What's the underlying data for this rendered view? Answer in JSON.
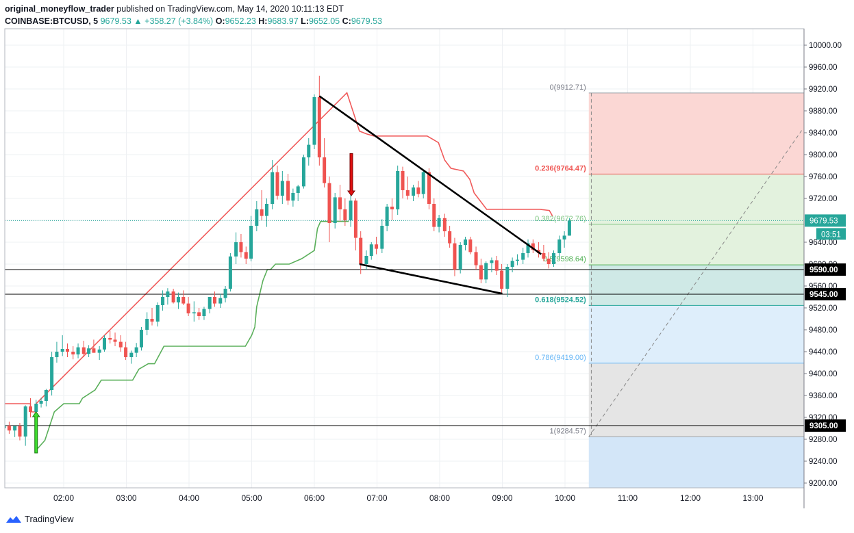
{
  "header": {
    "user": "original_moneyflow_trader",
    "published": "published on TradingView.com, May 14, 2020 10:11:13 EDT",
    "symbol": "COINBASE:BTCUSD, 5",
    "last": "9679.53",
    "change": "+358.27 (+3.84%)",
    "o_label": "O:",
    "o": "9652.23",
    "h_label": "H:",
    "h": "9683.97",
    "l_label": "L:",
    "l": "9652.05",
    "c_label": "C:",
    "c": "9679.53"
  },
  "footer": {
    "brand": "TradingView"
  },
  "colors": {
    "bull": "#26a69a",
    "bear": "#ef5350",
    "upper_line": "#f05a5a",
    "lower_line": "#5aaf5a",
    "fib_red": "#fbd7d4",
    "fib_green": "#e3f2de",
    "fib_teal": "#cfe9e6",
    "fib_lightblue": "#deeefb",
    "fib_gray": "#e5e5e5",
    "fib_blue": "#d3e6f8"
  },
  "chart_data": {
    "type": "candlestick",
    "title": "COINBASE:BTCUSD, 5",
    "xlabel": "",
    "ylabel": "",
    "ylim": [
      9195,
      10030
    ],
    "xlim": [
      1.05,
      13.8
    ],
    "x_ticks": [
      {
        "t": 2,
        "label": "02:00"
      },
      {
        "t": 3,
        "label": "03:00"
      },
      {
        "t": 4,
        "label": "04:00"
      },
      {
        "t": 5,
        "label": "05:00"
      },
      {
        "t": 6,
        "label": "06:00"
      },
      {
        "t": 7,
        "label": "07:00"
      },
      {
        "t": 8,
        "label": "08:00"
      },
      {
        "t": 9,
        "label": "09:00"
      },
      {
        "t": 10,
        "label": "10:00"
      },
      {
        "t": 11,
        "label": "11:00"
      },
      {
        "t": 12,
        "label": "12:00"
      },
      {
        "t": 13,
        "label": "13:00"
      }
    ],
    "y_ticks": [
      {
        "v": 10000,
        "label": "10000.00"
      },
      {
        "v": 9960,
        "label": "9960.00"
      },
      {
        "v": 9920,
        "label": "9920.00"
      },
      {
        "v": 9880,
        "label": "9880.00"
      },
      {
        "v": 9840,
        "label": "9840.00"
      },
      {
        "v": 9800,
        "label": "9800.00"
      },
      {
        "v": 9760,
        "label": "9760.00"
      },
      {
        "v": 9720,
        "label": "9720.00"
      },
      {
        "v": 9640,
        "label": "9640.00"
      },
      {
        "v": 9600,
        "label": "9600.00"
      },
      {
        "v": 9560,
        "label": "9560.00"
      },
      {
        "v": 9520,
        "label": "9520.00"
      },
      {
        "v": 9480,
        "label": "9480.00"
      },
      {
        "v": 9440,
        "label": "9440.00"
      },
      {
        "v": 9400,
        "label": "9400.00"
      },
      {
        "v": 9360,
        "label": "9360.00"
      },
      {
        "v": 9320,
        "label": "9320.00"
      },
      {
        "v": 9280,
        "label": "9280.00"
      },
      {
        "v": 9240,
        "label": "9240.00"
      },
      {
        "v": 9200,
        "label": "9200.00"
      }
    ],
    "candles": [
      {
        "t": 1.05,
        "o": 9300,
        "h": 9312,
        "l": 9282,
        "c": 9305
      },
      {
        "t": 1.13,
        "o": 9305,
        "h": 9312,
        "l": 9290,
        "c": 9296
      },
      {
        "t": 1.22,
        "o": 9296,
        "h": 9305,
        "l": 9284,
        "c": 9304
      },
      {
        "t": 1.3,
        "o": 9304,
        "h": 9310,
        "l": 9278,
        "c": 9285
      },
      {
        "t": 1.39,
        "o": 9285,
        "h": 9342,
        "l": 9268,
        "c": 9340
      },
      {
        "t": 1.47,
        "o": 9340,
        "h": 9355,
        "l": 9320,
        "c": 9330
      },
      {
        "t": 1.56,
        "o": 9330,
        "h": 9352,
        "l": 9320,
        "c": 9345
      },
      {
        "t": 1.64,
        "o": 9345,
        "h": 9356,
        "l": 9338,
        "c": 9350
      },
      {
        "t": 1.72,
        "o": 9350,
        "h": 9372,
        "l": 9340,
        "c": 9370
      },
      {
        "t": 1.81,
        "o": 9370,
        "h": 9440,
        "l": 9360,
        "c": 9430
      },
      {
        "t": 1.89,
        "o": 9430,
        "h": 9458,
        "l": 9420,
        "c": 9440
      },
      {
        "t": 1.98,
        "o": 9440,
        "h": 9470,
        "l": 9432,
        "c": 9445
      },
      {
        "t": 2.06,
        "o": 9445,
        "h": 9455,
        "l": 9430,
        "c": 9440
      },
      {
        "t": 2.15,
        "o": 9440,
        "h": 9450,
        "l": 9426,
        "c": 9435
      },
      {
        "t": 2.23,
        "o": 9435,
        "h": 9455,
        "l": 9428,
        "c": 9448
      },
      {
        "t": 2.32,
        "o": 9448,
        "h": 9460,
        "l": 9430,
        "c": 9436
      },
      {
        "t": 2.4,
        "o": 9436,
        "h": 9452,
        "l": 9430,
        "c": 9446
      },
      {
        "t": 2.48,
        "o": 9446,
        "h": 9462,
        "l": 9438,
        "c": 9438
      },
      {
        "t": 2.57,
        "o": 9438,
        "h": 9450,
        "l": 9425,
        "c": 9444
      },
      {
        "t": 2.65,
        "o": 9444,
        "h": 9470,
        "l": 9440,
        "c": 9465
      },
      {
        "t": 2.74,
        "o": 9465,
        "h": 9478,
        "l": 9455,
        "c": 9462
      },
      {
        "t": 2.82,
        "o": 9462,
        "h": 9475,
        "l": 9450,
        "c": 9458
      },
      {
        "t": 2.91,
        "o": 9458,
        "h": 9470,
        "l": 9440,
        "c": 9448
      },
      {
        "t": 2.99,
        "o": 9448,
        "h": 9458,
        "l": 9425,
        "c": 9430
      },
      {
        "t": 3.08,
        "o": 9430,
        "h": 9442,
        "l": 9418,
        "c": 9438
      },
      {
        "t": 3.16,
        "o": 9438,
        "h": 9456,
        "l": 9430,
        "c": 9448
      },
      {
        "t": 3.24,
        "o": 9448,
        "h": 9485,
        "l": 9442,
        "c": 9480
      },
      {
        "t": 3.33,
        "o": 9480,
        "h": 9512,
        "l": 9470,
        "c": 9500
      },
      {
        "t": 3.41,
        "o": 9500,
        "h": 9520,
        "l": 9488,
        "c": 9495
      },
      {
        "t": 3.5,
        "o": 9495,
        "h": 9530,
        "l": 9486,
        "c": 9525
      },
      {
        "t": 3.58,
        "o": 9525,
        "h": 9552,
        "l": 9515,
        "c": 9540
      },
      {
        "t": 3.66,
        "o": 9540,
        "h": 9556,
        "l": 9526,
        "c": 9550
      },
      {
        "t": 3.75,
        "o": 9550,
        "h": 9555,
        "l": 9528,
        "c": 9530
      },
      {
        "t": 3.83,
        "o": 9530,
        "h": 9548,
        "l": 9518,
        "c": 9540
      },
      {
        "t": 3.91,
        "o": 9540,
        "h": 9552,
        "l": 9525,
        "c": 9528
      },
      {
        "t": 3.99,
        "o": 9528,
        "h": 9540,
        "l": 9505,
        "c": 9510
      },
      {
        "t": 4.08,
        "o": 9510,
        "h": 9532,
        "l": 9495,
        "c": 9512
      },
      {
        "t": 4.16,
        "o": 9512,
        "h": 9520,
        "l": 9498,
        "c": 9505
      },
      {
        "t": 4.24,
        "o": 9505,
        "h": 9522,
        "l": 9498,
        "c": 9518
      },
      {
        "t": 4.33,
        "o": 9518,
        "h": 9540,
        "l": 9510,
        "c": 9540
      },
      {
        "t": 4.41,
        "o": 9540,
        "h": 9550,
        "l": 9522,
        "c": 9528
      },
      {
        "t": 4.5,
        "o": 9528,
        "h": 9546,
        "l": 9520,
        "c": 9538
      },
      {
        "t": 4.58,
        "o": 9538,
        "h": 9560,
        "l": 9530,
        "c": 9555
      },
      {
        "t": 4.66,
        "o": 9555,
        "h": 9620,
        "l": 9550,
        "c": 9614
      },
      {
        "t": 4.75,
        "o": 9614,
        "h": 9658,
        "l": 9600,
        "c": 9640
      },
      {
        "t": 4.83,
        "o": 9640,
        "h": 9655,
        "l": 9612,
        "c": 9622
      },
      {
        "t": 4.91,
        "o": 9622,
        "h": 9632,
        "l": 9600,
        "c": 9610
      },
      {
        "t": 4.99,
        "o": 9610,
        "h": 9688,
        "l": 9605,
        "c": 9670
      },
      {
        "t": 5.08,
        "o": 9670,
        "h": 9715,
        "l": 9660,
        "c": 9700
      },
      {
        "t": 5.16,
        "o": 9700,
        "h": 9735,
        "l": 9680,
        "c": 9688
      },
      {
        "t": 5.24,
        "o": 9688,
        "h": 9720,
        "l": 9668,
        "c": 9710
      },
      {
        "t": 5.33,
        "o": 9710,
        "h": 9790,
        "l": 9700,
        "c": 9768
      },
      {
        "t": 5.41,
        "o": 9768,
        "h": 9780,
        "l": 9718,
        "c": 9725
      },
      {
        "t": 5.49,
        "o": 9725,
        "h": 9770,
        "l": 9710,
        "c": 9752
      },
      {
        "t": 5.58,
        "o": 9752,
        "h": 9765,
        "l": 9708,
        "c": 9716
      },
      {
        "t": 5.66,
        "o": 9716,
        "h": 9738,
        "l": 9705,
        "c": 9730
      },
      {
        "t": 5.74,
        "o": 9730,
        "h": 9745,
        "l": 9715,
        "c": 9742
      },
      {
        "t": 5.83,
        "o": 9742,
        "h": 9800,
        "l": 9738,
        "c": 9795
      },
      {
        "t": 5.91,
        "o": 9795,
        "h": 9830,
        "l": 9780,
        "c": 9818
      },
      {
        "t": 6.0,
        "o": 9818,
        "h": 9910,
        "l": 9810,
        "c": 9905
      },
      {
        "t": 6.08,
        "o": 9905,
        "h": 9944,
        "l": 9780,
        "c": 9795
      },
      {
        "t": 6.16,
        "o": 9795,
        "h": 9830,
        "l": 9740,
        "c": 9748
      },
      {
        "t": 6.24,
        "o": 9748,
        "h": 9760,
        "l": 9640,
        "c": 9675
      },
      {
        "t": 6.33,
        "o": 9675,
        "h": 9730,
        "l": 9665,
        "c": 9722
      },
      {
        "t": 6.41,
        "o": 9722,
        "h": 9745,
        "l": 9678,
        "c": 9700
      },
      {
        "t": 6.49,
        "o": 9700,
        "h": 9720,
        "l": 9670,
        "c": 9680
      },
      {
        "t": 6.58,
        "o": 9680,
        "h": 9728,
        "l": 9668,
        "c": 9716
      },
      {
        "t": 6.66,
        "o": 9716,
        "h": 9720,
        "l": 9625,
        "c": 9648
      },
      {
        "t": 6.74,
        "o": 9648,
        "h": 9660,
        "l": 9582,
        "c": 9600
      },
      {
        "t": 6.83,
        "o": 9600,
        "h": 9625,
        "l": 9590,
        "c": 9615
      },
      {
        "t": 6.91,
        "o": 9615,
        "h": 9640,
        "l": 9608,
        "c": 9636
      },
      {
        "t": 6.99,
        "o": 9636,
        "h": 9650,
        "l": 9618,
        "c": 9628
      },
      {
        "t": 7.08,
        "o": 9628,
        "h": 9682,
        "l": 9620,
        "c": 9670
      },
      {
        "t": 7.16,
        "o": 9670,
        "h": 9710,
        "l": 9660,
        "c": 9705
      },
      {
        "t": 7.24,
        "o": 9705,
        "h": 9720,
        "l": 9680,
        "c": 9700
      },
      {
        "t": 7.33,
        "o": 9700,
        "h": 9780,
        "l": 9690,
        "c": 9770
      },
      {
        "t": 7.41,
        "o": 9770,
        "h": 9778,
        "l": 9720,
        "c": 9735
      },
      {
        "t": 7.49,
        "o": 9735,
        "h": 9760,
        "l": 9718,
        "c": 9725
      },
      {
        "t": 7.58,
        "o": 9725,
        "h": 9745,
        "l": 9715,
        "c": 9740
      },
      {
        "t": 7.66,
        "o": 9740,
        "h": 9752,
        "l": 9722,
        "c": 9728
      },
      {
        "t": 7.74,
        "o": 9728,
        "h": 9772,
        "l": 9720,
        "c": 9768
      },
      {
        "t": 7.83,
        "o": 9768,
        "h": 9775,
        "l": 9700,
        "c": 9710
      },
      {
        "t": 7.91,
        "o": 9710,
        "h": 9720,
        "l": 9660,
        "c": 9668
      },
      {
        "t": 7.99,
        "o": 9668,
        "h": 9690,
        "l": 9658,
        "c": 9684
      },
      {
        "t": 8.08,
        "o": 9684,
        "h": 9692,
        "l": 9650,
        "c": 9660
      },
      {
        "t": 8.16,
        "o": 9660,
        "h": 9670,
        "l": 9630,
        "c": 9638
      },
      {
        "t": 8.24,
        "o": 9638,
        "h": 9648,
        "l": 9578,
        "c": 9590
      },
      {
        "t": 8.33,
        "o": 9590,
        "h": 9640,
        "l": 9583,
        "c": 9635
      },
      {
        "t": 8.41,
        "o": 9635,
        "h": 9650,
        "l": 9625,
        "c": 9645
      },
      {
        "t": 8.49,
        "o": 9645,
        "h": 9650,
        "l": 9618,
        "c": 9622
      },
      {
        "t": 8.58,
        "o": 9622,
        "h": 9632,
        "l": 9590,
        "c": 9598
      },
      {
        "t": 8.66,
        "o": 9598,
        "h": 9610,
        "l": 9565,
        "c": 9572
      },
      {
        "t": 8.74,
        "o": 9572,
        "h": 9605,
        "l": 9565,
        "c": 9602
      },
      {
        "t": 8.83,
        "o": 9602,
        "h": 9612,
        "l": 9585,
        "c": 9607
      },
      {
        "t": 8.91,
        "o": 9607,
        "h": 9615,
        "l": 9580,
        "c": 9588
      },
      {
        "t": 8.99,
        "o": 9588,
        "h": 9600,
        "l": 9548,
        "c": 9555
      },
      {
        "t": 9.08,
        "o": 9555,
        "h": 9600,
        "l": 9540,
        "c": 9595
      },
      {
        "t": 9.16,
        "o": 9595,
        "h": 9612,
        "l": 9585,
        "c": 9606
      },
      {
        "t": 9.24,
        "o": 9606,
        "h": 9618,
        "l": 9598,
        "c": 9608
      },
      {
        "t": 9.33,
        "o": 9608,
        "h": 9630,
        "l": 9600,
        "c": 9620
      },
      {
        "t": 9.41,
        "o": 9620,
        "h": 9645,
        "l": 9612,
        "c": 9638
      },
      {
        "t": 9.49,
        "o": 9638,
        "h": 9645,
        "l": 9620,
        "c": 9626
      },
      {
        "t": 9.58,
        "o": 9626,
        "h": 9640,
        "l": 9612,
        "c": 9620
      },
      {
        "t": 9.66,
        "o": 9620,
        "h": 9635,
        "l": 9605,
        "c": 9610
      },
      {
        "t": 9.74,
        "o": 9610,
        "h": 9622,
        "l": 9592,
        "c": 9600
      },
      {
        "t": 9.82,
        "o": 9600,
        "h": 9625,
        "l": 9595,
        "c": 9620
      },
      {
        "t": 9.91,
        "o": 9620,
        "h": 9652,
        "l": 9612,
        "c": 9645
      },
      {
        "t": 9.99,
        "o": 9645,
        "h": 9660,
        "l": 9630,
        "c": 9652
      },
      {
        "t": 10.07,
        "o": 9652,
        "h": 9684,
        "l": 9652,
        "c": 9679.53
      }
    ],
    "upper_band": [
      [
        1.05,
        9345
      ],
      [
        1.47,
        9345
      ],
      [
        1.47,
        9330
      ],
      [
        1.56,
        9330
      ],
      [
        1.56,
        9345
      ],
      [
        6.52,
        9913
      ],
      [
        6.72,
        9843
      ],
      [
        6.83,
        9838
      ],
      [
        6.95,
        9834
      ],
      [
        7.8,
        9834
      ],
      [
        7.98,
        9822
      ],
      [
        8.08,
        9790
      ],
      [
        8.18,
        9775
      ],
      [
        8.38,
        9770
      ],
      [
        8.48,
        9755
      ],
      [
        8.55,
        9730
      ],
      [
        8.75,
        9700
      ],
      [
        9.6,
        9700
      ],
      [
        9.75,
        9698
      ],
      [
        9.8,
        9688
      ]
    ],
    "lower_band": [
      [
        1.56,
        9260
      ],
      [
        1.7,
        9278
      ],
      [
        1.85,
        9330
      ],
      [
        2.0,
        9345
      ],
      [
        2.25,
        9345
      ],
      [
        2.3,
        9355
      ],
      [
        2.5,
        9370
      ],
      [
        2.6,
        9388
      ],
      [
        3.1,
        9388
      ],
      [
        3.2,
        9408
      ],
      [
        3.35,
        9418
      ],
      [
        3.45,
        9418
      ],
      [
        3.6,
        9450
      ],
      [
        4.9,
        9450
      ],
      [
        5.0,
        9470
      ],
      [
        5.05,
        9485
      ],
      [
        5.08,
        9522
      ],
      [
        5.1,
        9532
      ],
      [
        5.18,
        9570
      ],
      [
        5.25,
        9590
      ],
      [
        5.3,
        9590
      ],
      [
        5.38,
        9600
      ],
      [
        5.6,
        9600
      ],
      [
        5.8,
        9610
      ],
      [
        6.0,
        9625
      ],
      [
        6.05,
        9665
      ],
      [
        6.1,
        9678
      ],
      [
        6.55,
        9678
      ]
    ],
    "wedge_lines": [
      {
        "x1": 6.08,
        "y1": 9907,
        "x2": 9.62,
        "y2": 9618
      },
      {
        "x1": 6.72,
        "y1": 9600,
        "x2": 9.0,
        "y2": 9546
      }
    ],
    "horizontal_lines": [
      {
        "value": 9590,
        "label": "9590.00"
      },
      {
        "value": 9545,
        "label": "9545.00"
      },
      {
        "value": 9305,
        "label": "9305.00"
      }
    ],
    "fib_retracement": [
      {
        "level": "0",
        "price": 9912.71,
        "label": "0(9912.71)"
      },
      {
        "level": "0.236",
        "price": 9764.47,
        "label": "0.236(9764.47)"
      },
      {
        "level": "0.382",
        "price": 9672.76,
        "label": "0.382(9672.76)"
      },
      {
        "level": "0.5",
        "price": 9598.64,
        "label": "0.5(9598.64)"
      },
      {
        "level": "0.618",
        "price": 9524.52,
        "label": "0.618(9524.52)"
      },
      {
        "level": "0.786",
        "price": 9419.0,
        "label": "0.786(9419.00)"
      },
      {
        "level": "1",
        "price": 9284.57,
        "label": "1(9284.57)"
      }
    ],
    "fib_start_t": 10.38,
    "diagonal_line": {
      "x1": 10.38,
      "y1": 9284.57,
      "x2": 13.8,
      "y2": 9848
    },
    "fib_pivot_dashed": {
      "x": 10.42,
      "y1": 9912.71,
      "y2": 9284.57
    },
    "arrows": [
      {
        "type": "up",
        "t": 1.56,
        "from": 9255,
        "to": 9330
      },
      {
        "type": "down",
        "t": 6.59,
        "from": 9802,
        "to": 9725
      }
    ],
    "last_price": {
      "value": 9679.53,
      "label": "9679.53",
      "countdown": "03:51"
    }
  }
}
